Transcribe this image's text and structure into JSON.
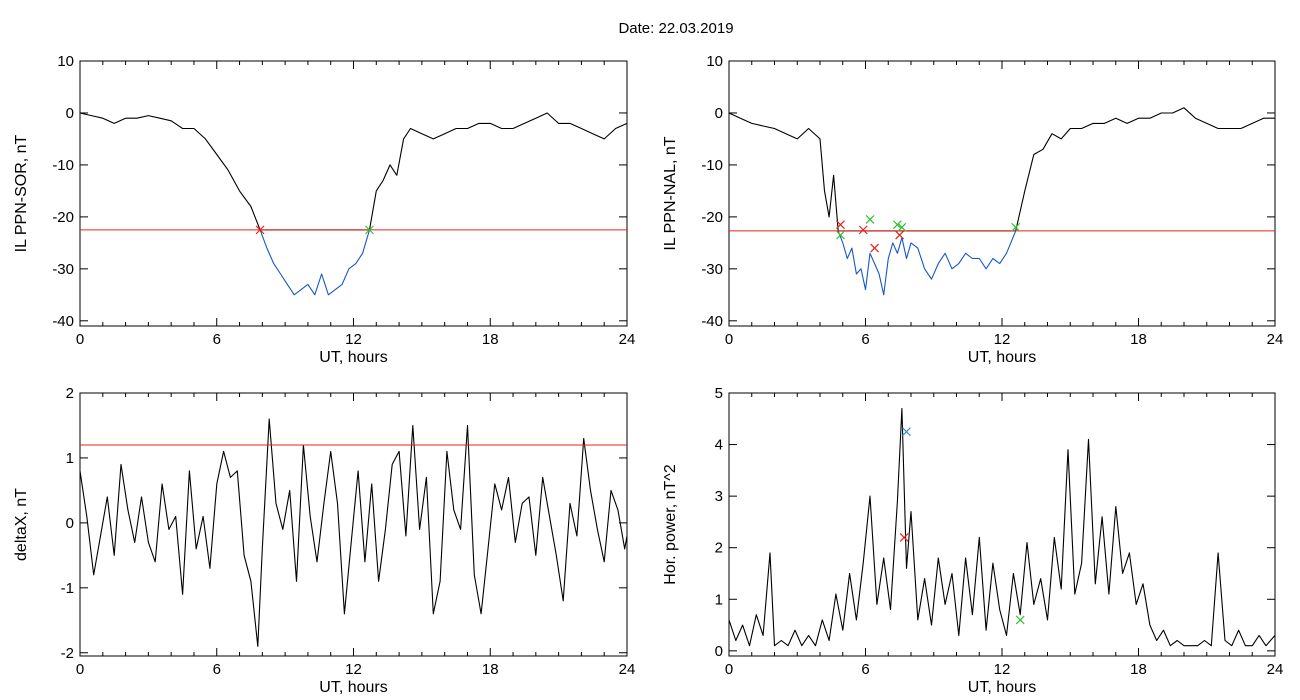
{
  "figure": {
    "title": "Date:  22.03.2019"
  },
  "chart_data": [
    {
      "id": "panel-sor",
      "type": "line",
      "title": "",
      "xlabel": "UT, hours",
      "ylabel": "IL PPN-SOR, nT",
      "xlim": [
        0,
        24
      ],
      "ylim": [
        -41,
        10
      ],
      "xticks": [
        0,
        6,
        12,
        18,
        24
      ],
      "yticks": [
        10,
        0,
        -10,
        -20,
        -30,
        -40
      ],
      "threshold": -22.5,
      "threshold_color": "#e8201b",
      "series": [
        {
          "color": "#000000",
          "x": [
            0,
            0.5,
            1,
            1.5,
            2,
            2.5,
            3,
            3.5,
            4,
            4.5,
            5,
            5.5,
            6,
            6.5,
            7,
            7.5,
            7.9,
            12.7,
            13,
            13.3,
            13.6,
            13.9,
            14.2,
            14.5,
            15,
            15.5,
            16,
            16.5,
            17,
            17.5,
            18,
            18.5,
            19,
            19.5,
            20,
            20.5,
            21,
            21.5,
            22,
            22.5,
            23,
            23.5,
            24
          ],
          "y": [
            0,
            -0.5,
            -1,
            -2,
            -1,
            -1,
            -0.5,
            -1,
            -1.5,
            -3,
            -3,
            -5,
            -8,
            -11,
            -15,
            -18,
            -22.5,
            -22.5,
            -15,
            -13,
            -10,
            -12,
            -5,
            -3,
            -4,
            -5,
            -4,
            -3,
            -3,
            -2,
            -2,
            -3,
            -3,
            -2,
            -1,
            0,
            -2,
            -2,
            -3,
            -4,
            -5,
            -3,
            -2
          ]
        },
        {
          "color": "#1757c9",
          "x": [
            7.9,
            8.2,
            8.5,
            8.8,
            9.1,
            9.4,
            9.7,
            10,
            10.3,
            10.6,
            10.9,
            11.2,
            11.5,
            11.8,
            12.1,
            12.4,
            12.7
          ],
          "y": [
            -22.5,
            -26,
            -29,
            -31,
            -33,
            -35,
            -34,
            -33,
            -35,
            -31,
            -35,
            -34,
            -33,
            -30,
            -29,
            -27,
            -22.5
          ]
        }
      ],
      "markers": [
        {
          "x": 7.9,
          "y": -22.5,
          "color": "#e8201b"
        },
        {
          "x": 12.7,
          "y": -22.5,
          "color": "#2ec32e"
        }
      ]
    },
    {
      "id": "panel-nal",
      "type": "line",
      "title": "",
      "xlabel": "UT, hours",
      "ylabel": "IL PPN-NAL, nT",
      "xlim": [
        0,
        24
      ],
      "ylim": [
        -41,
        10
      ],
      "xticks": [
        0,
        6,
        12,
        18,
        24
      ],
      "yticks": [
        10,
        0,
        -10,
        -20,
        -30,
        -40
      ],
      "threshold": -22.7,
      "threshold_color": "#e8201b",
      "series": [
        {
          "color": "#000000",
          "x": [
            0,
            0.5,
            1,
            1.5,
            2,
            2.5,
            3,
            3.5,
            4,
            4.2,
            4.4,
            4.6,
            4.8,
            12.6,
            13,
            13.4,
            13.8,
            14.2,
            14.6,
            15,
            15.5,
            16,
            16.5,
            17,
            17.5,
            18,
            18.5,
            19,
            19.5,
            20,
            20.5,
            21,
            21.5,
            22,
            22.5,
            23,
            23.5,
            24
          ],
          "y": [
            0,
            -1,
            -2,
            -2.5,
            -3,
            -4,
            -5,
            -3,
            -5,
            -15,
            -20,
            -12,
            -22.7,
            -22.7,
            -15,
            -8,
            -7,
            -4,
            -5,
            -3,
            -3,
            -2,
            -2,
            -1,
            -2,
            -1,
            -1,
            0,
            0,
            1,
            -1,
            -2,
            -3,
            -3,
            -3,
            -2,
            -1,
            -1
          ]
        },
        {
          "color": "#1757c9",
          "x": [
            4.8,
            5,
            5.2,
            5.4,
            5.6,
            5.8,
            6,
            6.2,
            6.4,
            6.6,
            6.8,
            7,
            7.2,
            7.4,
            7.6,
            7.8,
            8,
            8.3,
            8.6,
            8.9,
            9.2,
            9.5,
            9.8,
            10.1,
            10.4,
            10.7,
            11,
            11.3,
            11.6,
            11.9,
            12.2,
            12.6
          ],
          "y": [
            -22.7,
            -25,
            -28,
            -26,
            -31,
            -30,
            -34,
            -27,
            -29,
            -31,
            -35,
            -28,
            -25,
            -27,
            -24,
            -28,
            -25,
            -26,
            -30,
            -32,
            -29,
            -27,
            -30,
            -29,
            -27,
            -28,
            -28,
            -30,
            -28,
            -29,
            -27,
            -22.7
          ]
        }
      ],
      "markers": [
        {
          "x": 4.9,
          "y": -21.5,
          "color": "#e8201b"
        },
        {
          "x": 4.9,
          "y": -23.5,
          "color": "#2ec32e"
        },
        {
          "x": 5.9,
          "y": -22.5,
          "color": "#e8201b"
        },
        {
          "x": 6.2,
          "y": -20.5,
          "color": "#2ec32e"
        },
        {
          "x": 6.4,
          "y": -26.0,
          "color": "#e8201b"
        },
        {
          "x": 7.4,
          "y": -21.5,
          "color": "#2ec32e"
        },
        {
          "x": 7.5,
          "y": -23.5,
          "color": "#e8201b"
        },
        {
          "x": 7.6,
          "y": -22.0,
          "color": "#2ec32e"
        },
        {
          "x": 12.6,
          "y": -22.0,
          "color": "#2ec32e"
        }
      ]
    },
    {
      "id": "panel-deltax",
      "type": "line",
      "title": "",
      "xlabel": "UT, hours",
      "ylabel": "deltaX, nT",
      "xlim": [
        0,
        24
      ],
      "ylim": [
        -2.05,
        2
      ],
      "xticks": [
        0,
        6,
        12,
        18,
        24
      ],
      "yticks": [
        2,
        1,
        0,
        -1,
        -2
      ],
      "threshold": 1.2,
      "threshold_color": "#e8201b",
      "series": [
        {
          "color": "#000000",
          "x": [
            0,
            0.3,
            0.6,
            0.9,
            1.2,
            1.5,
            1.8,
            2.1,
            2.4,
            2.7,
            3.0,
            3.3,
            3.6,
            3.9,
            4.2,
            4.5,
            4.8,
            5.1,
            5.4,
            5.7,
            6.0,
            6.3,
            6.6,
            6.9,
            7.2,
            7.5,
            7.8,
            8.0,
            8.3,
            8.6,
            8.9,
            9.2,
            9.5,
            9.8,
            10.1,
            10.4,
            10.7,
            11.0,
            11.3,
            11.6,
            11.9,
            12.2,
            12.5,
            12.8,
            13.1,
            13.4,
            13.7,
            14.0,
            14.3,
            14.6,
            14.9,
            15.2,
            15.5,
            15.8,
            16.1,
            16.4,
            16.7,
            17.0,
            17.3,
            17.6,
            17.9,
            18.2,
            18.5,
            18.8,
            19.1,
            19.4,
            19.7,
            20.0,
            20.3,
            20.6,
            20.9,
            21.2,
            21.5,
            21.8,
            22.1,
            22.4,
            22.7,
            23.0,
            23.3,
            23.6,
            23.9,
            24
          ],
          "y": [
            0.8,
            0.1,
            -0.8,
            -0.2,
            0.4,
            -0.5,
            0.9,
            0.2,
            -0.3,
            0.4,
            -0.3,
            -0.6,
            0.6,
            -0.1,
            0.1,
            -1.1,
            0.8,
            -0.4,
            0.1,
            -0.7,
            0.6,
            1.1,
            0.7,
            0.8,
            -0.5,
            -0.9,
            -1.9,
            -0.4,
            1.6,
            0.3,
            -0.1,
            0.5,
            -0.9,
            1.2,
            0.1,
            -0.6,
            0.3,
            1.1,
            0.3,
            -1.4,
            -0.3,
            0.8,
            -0.6,
            0.6,
            -0.9,
            -0.1,
            0.9,
            1.1,
            -0.2,
            1.5,
            -0.1,
            0.7,
            -1.4,
            -0.9,
            1.1,
            0.2,
            -0.1,
            1.5,
            -0.8,
            -1.4,
            -0.4,
            0.6,
            0.2,
            0.7,
            -0.3,
            0.3,
            0.4,
            -0.5,
            0.7,
            0.1,
            -0.5,
            -1.2,
            0.3,
            -0.2,
            1.3,
            0.5,
            -0.1,
            -0.6,
            0.5,
            0.2,
            -0.4,
            -0.2
          ]
        }
      ],
      "markers": []
    },
    {
      "id": "panel-power",
      "type": "line",
      "title": "",
      "xlabel": "UT, hours",
      "ylabel": "Hor. power, nT^2",
      "xlim": [
        0,
        24
      ],
      "ylim": [
        -0.1,
        5
      ],
      "xticks": [
        0,
        6,
        12,
        18,
        24
      ],
      "yticks": [
        5,
        4,
        3,
        2,
        1,
        0
      ],
      "threshold": null,
      "threshold_color": "#e8201b",
      "series": [
        {
          "color": "#000000",
          "x": [
            0,
            0.3,
            0.6,
            0.9,
            1.2,
            1.5,
            1.8,
            2.0,
            2.3,
            2.6,
            2.9,
            3.2,
            3.5,
            3.8,
            4.1,
            4.4,
            4.7,
            5.0,
            5.3,
            5.6,
            5.9,
            6.2,
            6.5,
            6.8,
            7.1,
            7.4,
            7.6,
            7.8,
            8.0,
            8.3,
            8.6,
            8.9,
            9.2,
            9.5,
            9.8,
            10.1,
            10.4,
            10.7,
            11.0,
            11.3,
            11.6,
            11.9,
            12.2,
            12.5,
            12.8,
            13.1,
            13.4,
            13.7,
            14.0,
            14.3,
            14.6,
            14.9,
            15.2,
            15.5,
            15.8,
            16.1,
            16.4,
            16.7,
            17.0,
            17.3,
            17.6,
            17.9,
            18.2,
            18.5,
            18.8,
            19.1,
            19.4,
            19.7,
            20.0,
            20.3,
            20.6,
            20.9,
            21.2,
            21.5,
            21.8,
            22.1,
            22.4,
            22.7,
            23.0,
            23.3,
            23.6,
            24
          ],
          "y": [
            0.6,
            0.2,
            0.5,
            0.1,
            0.7,
            0.3,
            1.9,
            0.1,
            0.2,
            0.1,
            0.4,
            0.1,
            0.3,
            0.1,
            0.6,
            0.2,
            1.1,
            0.4,
            1.5,
            0.6,
            1.7,
            3.0,
            0.9,
            1.8,
            0.8,
            2.9,
            4.7,
            1.6,
            2.7,
            0.6,
            1.4,
            0.5,
            1.8,
            0.9,
            1.5,
            0.3,
            1.8,
            0.7,
            2.2,
            0.4,
            1.7,
            0.8,
            0.3,
            1.5,
            0.7,
            2.1,
            0.9,
            1.4,
            0.6,
            2.2,
            1.2,
            3.9,
            1.1,
            1.7,
            4.1,
            1.3,
            2.6,
            1.1,
            2.8,
            1.5,
            1.9,
            0.9,
            1.3,
            0.5,
            0.2,
            0.4,
            0.1,
            0.2,
            0.1,
            0.1,
            0.1,
            0.2,
            0.1,
            1.9,
            0.2,
            0.1,
            0.4,
            0.1,
            0.1,
            0.3,
            0.1,
            0.3
          ]
        }
      ],
      "markers": [
        {
          "x": 7.8,
          "y": 4.25,
          "color": "#2a8fd3"
        },
        {
          "x": 7.7,
          "y": 2.2,
          "color": "#e8201b"
        },
        {
          "x": 12.8,
          "y": 0.6,
          "color": "#2ec32e"
        }
      ]
    }
  ]
}
